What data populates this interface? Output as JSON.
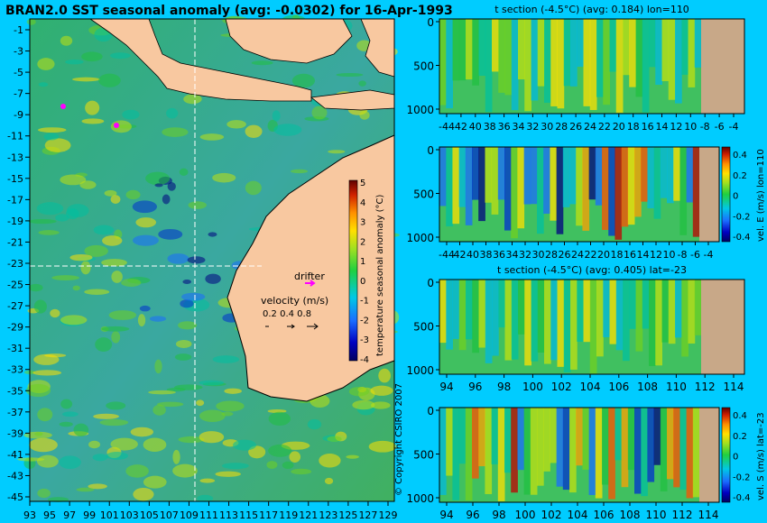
{
  "chart_data": [
    {
      "type": "heatmap",
      "title": "BRAN2.0 SST seasonal anomaly (avg: -0.0302) for 16-Apr-1993",
      "x_ticks": [
        "93",
        "95",
        "97",
        "99",
        "101",
        "103",
        "105",
        "107",
        "109",
        "111",
        "113",
        "115",
        "117",
        "119",
        "121",
        "123",
        "125",
        "127",
        "129"
      ],
      "y_ticks": [
        "-1",
        "-3",
        "-5",
        "-7",
        "-9",
        "-11",
        "-13",
        "-15",
        "-17",
        "-19",
        "-21",
        "-23",
        "-25",
        "-27",
        "-29",
        "-31",
        "-33",
        "-35",
        "-37",
        "-39",
        "-41",
        "-43",
        "-45"
      ],
      "colorbar_label": "temperature seasonal anomaly (°C)",
      "colorbar_ticks": [
        "5",
        "4",
        "3",
        "2",
        "1",
        "0",
        "-1",
        "-2",
        "-3",
        "-4"
      ],
      "annotations": {
        "drifter": "drifter",
        "velocity_title": "velocity (m/s)",
        "velocity_values": "0.2  0.4  0.8"
      },
      "copyright": "© Copyright CSIRO 2007"
    },
    {
      "type": "heatmap",
      "title": "t section (-4.5°C) (avg: 0.184) lon=110",
      "x_ticks": [
        "-44",
        "42",
        "40",
        "38",
        "36",
        "34",
        "32",
        "30",
        "28",
        "26",
        "24",
        "22",
        "20",
        "18",
        "16",
        "14",
        "12",
        "10",
        "-8",
        "-6",
        "-4"
      ],
      "y_ticks": [
        "0",
        "500",
        "1000"
      ]
    },
    {
      "type": "heatmap",
      "title": "",
      "x_ticks": [
        "-44",
        "42",
        "40",
        "38",
        "36",
        "34",
        "32",
        "30",
        "28",
        "26",
        "24",
        "22",
        "20",
        "18",
        "16",
        "14",
        "12",
        "10",
        "-8",
        "-6",
        "-4"
      ],
      "y_ticks": [
        "0",
        "500",
        "1000"
      ],
      "colorbar_label": "vel. E (m/s) lon=110",
      "colorbar_ticks": [
        "0.4",
        "0.2",
        "0",
        "-0.2",
        "-0.4"
      ]
    },
    {
      "type": "heatmap",
      "title": "t section (-4.5°C) (avg: 0.405) lat=-23",
      "x_ticks": [
        "94",
        "96",
        "98",
        "100",
        "102",
        "104",
        "106",
        "108",
        "110",
        "112",
        "114"
      ],
      "y_ticks": [
        "0",
        "500",
        "1000"
      ]
    },
    {
      "type": "heatmap",
      "title": "",
      "x_ticks": [
        "94",
        "96",
        "98",
        "100",
        "102",
        "104",
        "106",
        "108",
        "110",
        "112",
        "114"
      ],
      "y_ticks": [
        "0",
        "500",
        "1000"
      ],
      "colorbar_label": "vel. S (m/s) lat=-23",
      "colorbar_ticks": [
        "0.4",
        "0.2",
        "0",
        "-0.2",
        "-0.4"
      ]
    }
  ],
  "colors": {
    "background": "#00ccff",
    "land": "#f8c8a0",
    "section_land": "#c8a888"
  }
}
